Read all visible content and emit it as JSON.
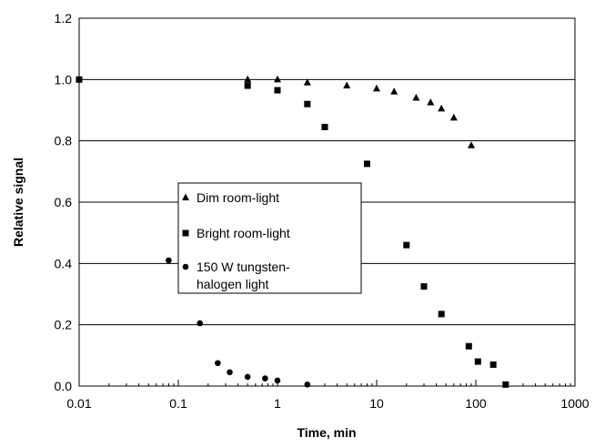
{
  "chart_data": {
    "type": "scatter",
    "title": "",
    "xlabel": "Time, min",
    "ylabel": "Relative signal",
    "xscale": "log",
    "xlim": [
      0.01,
      1000
    ],
    "ylim": [
      0,
      1.2
    ],
    "x_ticks": [
      "0.01",
      "0.1",
      "1",
      "10",
      "100",
      "1000"
    ],
    "y_ticks": [
      "0.0",
      "0.2",
      "0.4",
      "0.6",
      "0.8",
      "1.0",
      "1.2"
    ],
    "grid": "horizontal",
    "legend_position": "center-left",
    "series": [
      {
        "name": "Dim room-light",
        "marker": "triangle",
        "x": [
          0.5,
          1,
          2,
          5,
          10,
          15,
          25,
          35,
          45,
          60,
          90
        ],
        "y": [
          1.0,
          1.0,
          0.99,
          0.98,
          0.97,
          0.96,
          0.94,
          0.925,
          0.905,
          0.875,
          0.785
        ]
      },
      {
        "name": "Bright room-light",
        "marker": "square",
        "x": [
          0.01,
          0.5,
          1,
          2,
          3,
          8,
          20,
          30,
          45,
          85,
          105,
          150,
          200
        ],
        "y": [
          1.0,
          0.98,
          0.965,
          0.92,
          0.845,
          0.725,
          0.46,
          0.325,
          0.235,
          0.13,
          0.08,
          0.07,
          0.005
        ]
      },
      {
        "name": "150 W tungsten-halogen light",
        "legend_lines": [
          "150 W tungsten-",
          "halogen light"
        ],
        "marker": "circle",
        "x": [
          0.08,
          0.165,
          0.25,
          0.33,
          0.5,
          0.75,
          1,
          2
        ],
        "y": [
          0.41,
          0.205,
          0.075,
          0.045,
          0.03,
          0.025,
          0.018,
          0.005
        ]
      }
    ]
  }
}
